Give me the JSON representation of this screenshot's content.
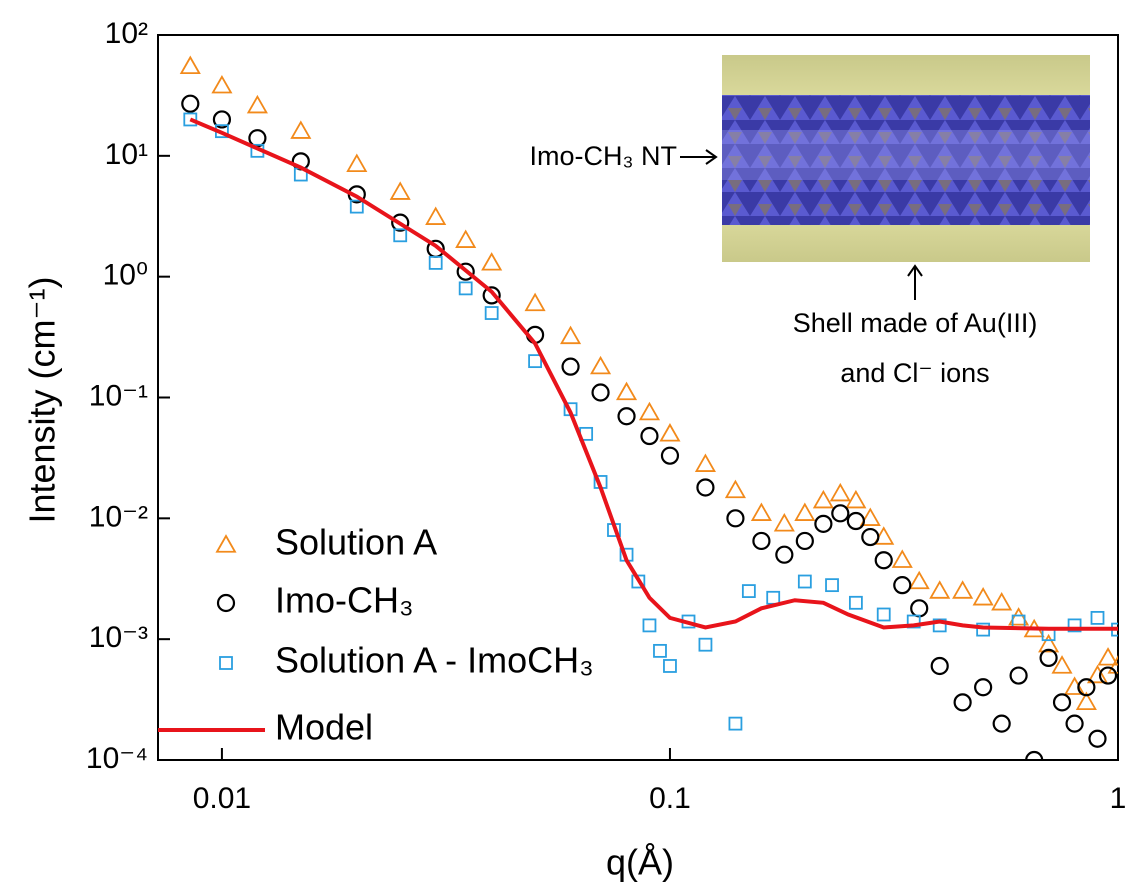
{
  "chart_data": {
    "type": "scatter",
    "xlabel": "q(Å)",
    "ylabel": "Intensity (cm⁻¹)",
    "log_x": true,
    "log_y": true,
    "xlim": [
      0.0072,
      1
    ],
    "ylim": [
      0.0001,
      100
    ],
    "xticks": [
      0.01,
      0.1,
      1
    ],
    "yticks": [
      {
        "value": 0.0001,
        "label": "10⁻⁴"
      },
      {
        "value": 0.001,
        "label": "10⁻³"
      },
      {
        "value": 0.01,
        "label": "10⁻²"
      },
      {
        "value": 0.1,
        "label": "10⁻¹"
      },
      {
        "value": 1,
        "label": "10⁰"
      },
      {
        "value": 10,
        "label": "10¹"
      },
      {
        "value": 100,
        "label": "10²"
      }
    ],
    "legend": "lower left",
    "series": [
      {
        "name": "Solution A",
        "color": "#f28a1b",
        "marker": "triangle",
        "x": [
          0.0085,
          0.01,
          0.012,
          0.015,
          0.02,
          0.025,
          0.03,
          0.035,
          0.04,
          0.05,
          0.06,
          0.07,
          0.08,
          0.09,
          0.1,
          0.12,
          0.14,
          0.16,
          0.18,
          0.2,
          0.22,
          0.24,
          0.26,
          0.28,
          0.3,
          0.33,
          0.36,
          0.4,
          0.45,
          0.5,
          0.55,
          0.6,
          0.65,
          0.7,
          0.75,
          0.8,
          0.85,
          0.9,
          0.95,
          1.0
        ],
        "values": [
          55,
          38,
          26,
          16,
          8.5,
          5,
          3.1,
          2,
          1.3,
          0.6,
          0.32,
          0.18,
          0.11,
          0.075,
          0.05,
          0.028,
          0.017,
          0.011,
          0.009,
          0.011,
          0.014,
          0.016,
          0.014,
          0.01,
          0.007,
          0.0045,
          0.003,
          0.0025,
          0.0025,
          0.0022,
          0.002,
          0.0015,
          0.0012,
          0.0009,
          0.0006,
          0.0004,
          0.0003,
          0.0005,
          0.0007,
          0.0006
        ]
      },
      {
        "name": "Imo-CH₃",
        "color": "#000000",
        "marker": "circle",
        "x": [
          0.0085,
          0.01,
          0.012,
          0.015,
          0.02,
          0.025,
          0.03,
          0.035,
          0.04,
          0.05,
          0.06,
          0.07,
          0.08,
          0.09,
          0.1,
          0.12,
          0.14,
          0.16,
          0.18,
          0.2,
          0.22,
          0.24,
          0.26,
          0.28,
          0.3,
          0.33,
          0.36,
          0.4,
          0.45,
          0.5,
          0.55,
          0.6,
          0.65,
          0.7,
          0.75,
          0.8,
          0.85,
          0.9,
          0.95
        ],
        "values": [
          27,
          20,
          14,
          9,
          4.8,
          2.8,
          1.7,
          1.1,
          0.7,
          0.33,
          0.18,
          0.11,
          0.07,
          0.048,
          0.033,
          0.018,
          0.01,
          0.0065,
          0.005,
          0.0065,
          0.009,
          0.011,
          0.0095,
          0.007,
          0.0045,
          0.0028,
          0.0018,
          0.0006,
          0.0003,
          0.0004,
          0.0002,
          0.0005,
          0.0001,
          0.0007,
          0.0003,
          0.0002,
          0.0004,
          0.00015,
          0.0005
        ]
      },
      {
        "name": "Solution A - ImoCH₃",
        "color": "#2a9fe0",
        "marker": "square",
        "x": [
          0.0085,
          0.01,
          0.012,
          0.015,
          0.02,
          0.025,
          0.03,
          0.035,
          0.04,
          0.05,
          0.06,
          0.065,
          0.07,
          0.075,
          0.08,
          0.085,
          0.09,
          0.095,
          0.1,
          0.11,
          0.12,
          0.14,
          0.15,
          0.17,
          0.2,
          0.23,
          0.26,
          0.3,
          0.35,
          0.4,
          0.5,
          0.6,
          0.7,
          0.8,
          0.9,
          1.0
        ],
        "values": [
          20,
          16,
          11,
          7,
          3.8,
          2.2,
          1.3,
          0.8,
          0.5,
          0.2,
          0.08,
          0.05,
          0.02,
          0.008,
          0.005,
          0.003,
          0.0013,
          0.0008,
          0.0006,
          0.0014,
          0.0009,
          0.0002,
          0.0025,
          0.0022,
          0.003,
          0.0028,
          0.002,
          0.0016,
          0.0014,
          0.0013,
          0.0012,
          0.0014,
          0.0011,
          0.0013,
          0.0015,
          0.0012
        ]
      },
      {
        "name": "Model",
        "color": "#e8141b",
        "marker": "line",
        "x": [
          0.0085,
          0.01,
          0.015,
          0.02,
          0.03,
          0.04,
          0.05,
          0.06,
          0.07,
          0.08,
          0.09,
          0.1,
          0.12,
          0.14,
          0.16,
          0.19,
          0.22,
          0.25,
          0.3,
          0.35,
          0.4,
          0.45,
          0.5,
          0.7,
          1.0
        ],
        "values": [
          20,
          15.5,
          8,
          4.6,
          1.8,
          0.75,
          0.28,
          0.075,
          0.018,
          0.0045,
          0.0022,
          0.0015,
          0.00125,
          0.0014,
          0.0018,
          0.0021,
          0.002,
          0.0016,
          0.00125,
          0.0013,
          0.0014,
          0.0013,
          0.00125,
          0.00122,
          0.00122
        ]
      }
    ],
    "annotations": [
      "Imo-CH₃ NT",
      "Shell made of Au(III)",
      "and Cl⁻ ions"
    ]
  }
}
